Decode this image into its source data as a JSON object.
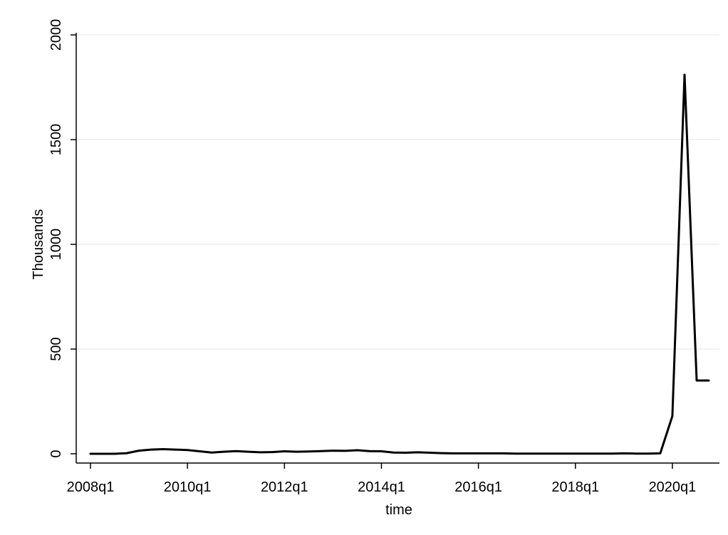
{
  "chart_data": {
    "type": "line",
    "title": "",
    "xlabel": "time",
    "ylabel": "Thousands",
    "ylim": [
      0,
      2000
    ],
    "xlim": [
      "2008q1",
      "2020q4"
    ],
    "yticks": [
      0,
      500,
      1000,
      1500,
      2000
    ],
    "xticks": [
      "2008q1",
      "2010q1",
      "2012q1",
      "2014q1",
      "2016q1",
      "2018q1",
      "2020q1"
    ],
    "grid": true,
    "legend": "none",
    "colors": {
      "line": "#000000",
      "grid": "#e6e6e6",
      "background": "#ffffff"
    },
    "series": [
      {
        "x": [
          "2008q1",
          "2008q2",
          "2008q3",
          "2008q4",
          "2009q1",
          "2009q2",
          "2009q3",
          "2009q4",
          "2010q1",
          "2010q2",
          "2010q3",
          "2010q4",
          "2011q1",
          "2011q2",
          "2011q3",
          "2011q4",
          "2012q1",
          "2012q2",
          "2012q3",
          "2012q4",
          "2013q1",
          "2013q2",
          "2013q3",
          "2013q4",
          "2014q1",
          "2014q2",
          "2014q3",
          "2014q4",
          "2015q1",
          "2015q2",
          "2015q3",
          "2015q4",
          "2016q1",
          "2016q2",
          "2016q3",
          "2016q4",
          "2017q1",
          "2017q2",
          "2017q3",
          "2017q4",
          "2018q1",
          "2018q2",
          "2018q3",
          "2018q4",
          "2019q1",
          "2019q2",
          "2019q3",
          "2019q4",
          "2020q1",
          "2020q2",
          "2020q3",
          "2020q4"
        ],
        "values": [
          0,
          0,
          0,
          3,
          15,
          20,
          22,
          20,
          18,
          12,
          6,
          10,
          13,
          10,
          7,
          8,
          12,
          10,
          11,
          13,
          15,
          14,
          17,
          13,
          12,
          6,
          5,
          7,
          5,
          3,
          2,
          2,
          2,
          2,
          2,
          1,
          1,
          1,
          1,
          1,
          1,
          1,
          1,
          1,
          2,
          1,
          1,
          2,
          180,
          1810,
          350,
          350
        ]
      }
    ]
  }
}
